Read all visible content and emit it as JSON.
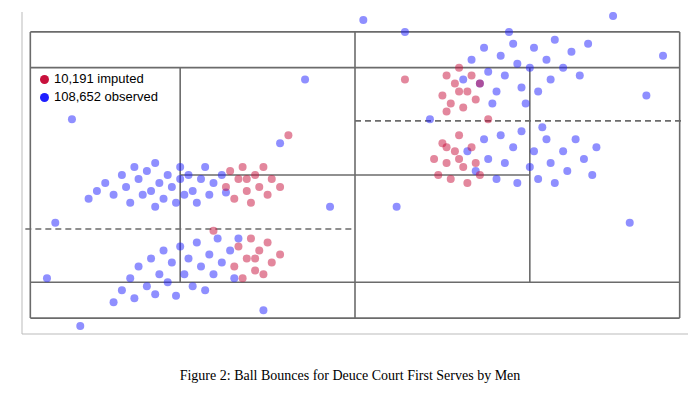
{
  "chart_data": {
    "type": "scatter",
    "title": "Figure 2: Ball Bounces for Deuce Court First Serves by Men",
    "xlim": [
      -1,
      79
    ],
    "ylim": [
      -2,
      38.5
    ],
    "tick_labels": false,
    "grid": false,
    "legend": "top-left",
    "marker": "circle",
    "court_lines": [
      {
        "from": [
          0,
          0
        ],
        "to": [
          78,
          0
        ],
        "line_style": "solid"
      },
      {
        "from": [
          78,
          0
        ],
        "to": [
          78,
          36
        ],
        "line_style": "solid"
      },
      {
        "from": [
          78,
          36
        ],
        "to": [
          0,
          36
        ],
        "line_style": "solid"
      },
      {
        "from": [
          0,
          36
        ],
        "to": [
          0,
          0
        ],
        "line_style": "solid"
      },
      {
        "from": [
          0,
          4.5
        ],
        "to": [
          78,
          4.5
        ],
        "line_style": "solid"
      },
      {
        "from": [
          0,
          31.5
        ],
        "to": [
          78,
          31.5
        ],
        "line_style": "solid"
      },
      {
        "from": [
          39,
          0
        ],
        "to": [
          39,
          36
        ],
        "line_style": "solid"
      },
      {
        "from": [
          18,
          4.5
        ],
        "to": [
          18,
          31.5
        ],
        "line_style": "solid"
      },
      {
        "from": [
          60,
          4.5
        ],
        "to": [
          60,
          31.5
        ],
        "line_style": "solid"
      },
      {
        "from": [
          18,
          18
        ],
        "to": [
          60,
          18
        ],
        "line_style": "solid"
      },
      {
        "from": [
          -0.6,
          11.2
        ],
        "to": [
          39,
          11.2
        ],
        "line_style": "dashed"
      },
      {
        "from": [
          39,
          24.8
        ],
        "to": [
          78.6,
          24.8
        ],
        "line_style": "dashed"
      }
    ],
    "series": [
      {
        "name": "108,652 observed",
        "color": "#1f1fff",
        "x": [
          9,
          10,
          11,
          11.5,
          12,
          12.5,
          13,
          13.5,
          14,
          14.5,
          15,
          15,
          15.5,
          16,
          16.5,
          17,
          17.5,
          18,
          18,
          18.5,
          19,
          19.5,
          20,
          20.5,
          21,
          21.5,
          22,
          23,
          23.5,
          8,
          7,
          11,
          12,
          12.5,
          13,
          14,
          14.5,
          15,
          15.5,
          16,
          16.5,
          17,
          17.5,
          18,
          18.5,
          19,
          19.5,
          20,
          20.5,
          21,
          21.5,
          22,
          22.5,
          23,
          24,
          24.5,
          10,
          25,
          52,
          53,
          54,
          54.5,
          55,
          56,
          56.5,
          57,
          58,
          58.5,
          59,
          60,
          60.5,
          61,
          62,
          62.5,
          63,
          64,
          65,
          66,
          55.5,
          59.5,
          67,
          57.5,
          52.5,
          53.5,
          54.5,
          55,
          56,
          56.5,
          57,
          58,
          58.5,
          59,
          60,
          60.5,
          61,
          62,
          62.5,
          63,
          64,
          64.5,
          65.5,
          66.5,
          67.5,
          68,
          61.5,
          3,
          5,
          30,
          28,
          2,
          36,
          45,
          70,
          74,
          48,
          44,
          33,
          72,
          6,
          40,
          76
        ],
        "values": [
          17,
          15.5,
          18,
          16.5,
          14.5,
          19,
          17.5,
          15.5,
          18.5,
          16,
          14,
          19.5,
          17,
          15,
          18,
          16.5,
          14.5,
          19,
          17.5,
          15.5,
          18,
          16,
          14.5,
          17.5,
          19,
          15.5,
          17,
          18,
          15.8,
          16,
          15,
          3.5,
          5,
          2.5,
          6.5,
          4,
          7.5,
          3,
          5.5,
          8.5,
          4.5,
          7,
          2.8,
          9,
          5.5,
          7.5,
          4,
          9.5,
          6.5,
          3.5,
          8,
          5.5,
          10,
          7,
          8.5,
          5,
          2,
          10,
          30,
          32.5,
          29.5,
          34,
          31,
          28.5,
          33,
          30.5,
          34.5,
          32,
          29,
          31.5,
          34,
          28.5,
          32.5,
          30,
          35,
          31.5,
          33.5,
          30.5,
          27,
          27,
          34.5,
          36,
          21,
          18.5,
          22.5,
          20,
          17.5,
          23,
          19.5,
          21.5,
          17,
          23.5,
          19,
          21,
          17.5,
          22.5,
          19.5,
          17,
          21,
          18.5,
          22.5,
          20,
          18,
          21.5,
          24,
          12,
          25,
          22,
          1,
          5,
          14,
          36,
          38,
          28,
          25,
          14,
          30,
          12,
          -1,
          37.5,
          33
        ]
      },
      {
        "name": "10,191 imputed",
        "color": "#c8103c",
        "x": [
          23.5,
          24,
          24.5,
          25,
          25.5,
          26,
          26.5,
          27,
          27.5,
          28,
          28.5,
          29,
          30,
          26,
          24.5,
          25,
          25.5,
          26,
          26.5,
          27,
          27.5,
          28,
          28.5,
          29,
          30,
          27,
          49.5,
          50,
          50.5,
          51,
          51.5,
          52,
          52.5,
          53,
          53.5,
          54,
          51.5,
          50,
          48.5,
          49,
          49.5,
          50,
          50.5,
          51,
          51.5,
          52,
          52.5,
          53,
          53.5,
          54,
          51.5,
          50,
          31,
          45,
          22,
          55
        ],
        "values": [
          16.5,
          18.5,
          15,
          17.5,
          19,
          16,
          14.5,
          18,
          16.5,
          19,
          15.5,
          17.5,
          16.5,
          17.5,
          6.5,
          9,
          5,
          7.5,
          10,
          6,
          8.5,
          5.5,
          9.5,
          7,
          8,
          7.5,
          28,
          30.5,
          27,
          29.5,
          31.5,
          26.5,
          28.5,
          30.5,
          27.5,
          29.5,
          28.5,
          26,
          20,
          18,
          22,
          19.5,
          17.5,
          21,
          23,
          19,
          17,
          21.5,
          19.5,
          18,
          20,
          21.5,
          23,
          30,
          11,
          25
        ]
      }
    ]
  }
}
